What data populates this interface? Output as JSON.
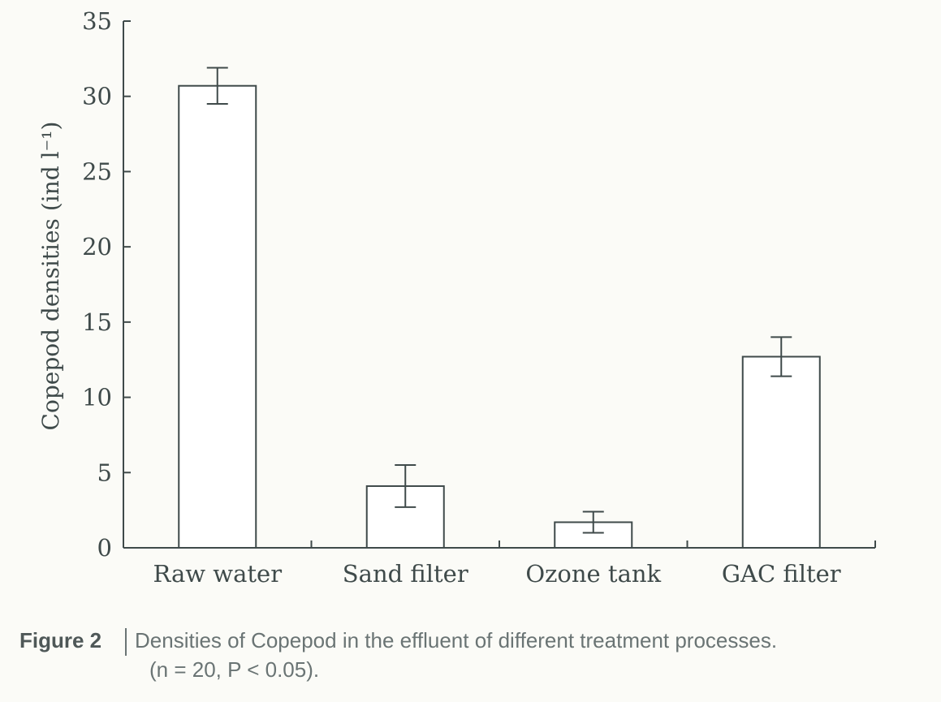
{
  "chart_data": {
    "type": "bar",
    "title": "",
    "xlabel": "",
    "ylabel": "Copepod densities (ind l⁻¹)",
    "ylim": [
      0,
      35
    ],
    "yticks": [
      0,
      5,
      10,
      15,
      20,
      25,
      30,
      35
    ],
    "categories": [
      "Raw water",
      "Sand filter",
      "Ozone tank",
      "GAC filter"
    ],
    "values": [
      30.7,
      4.1,
      1.7,
      12.7
    ],
    "errors": [
      1.2,
      1.4,
      0.7,
      1.3
    ],
    "grid": false
  },
  "caption": {
    "label": "Figure 2",
    "text": "Densities of Copepod in the effluent of different treatment processes.",
    "note": "(n = 20, P < 0.05)."
  },
  "colors": {
    "axis": "#3f4a4a",
    "bar_fill": "#ffffff",
    "bar_stroke": "#3f4a4a"
  }
}
